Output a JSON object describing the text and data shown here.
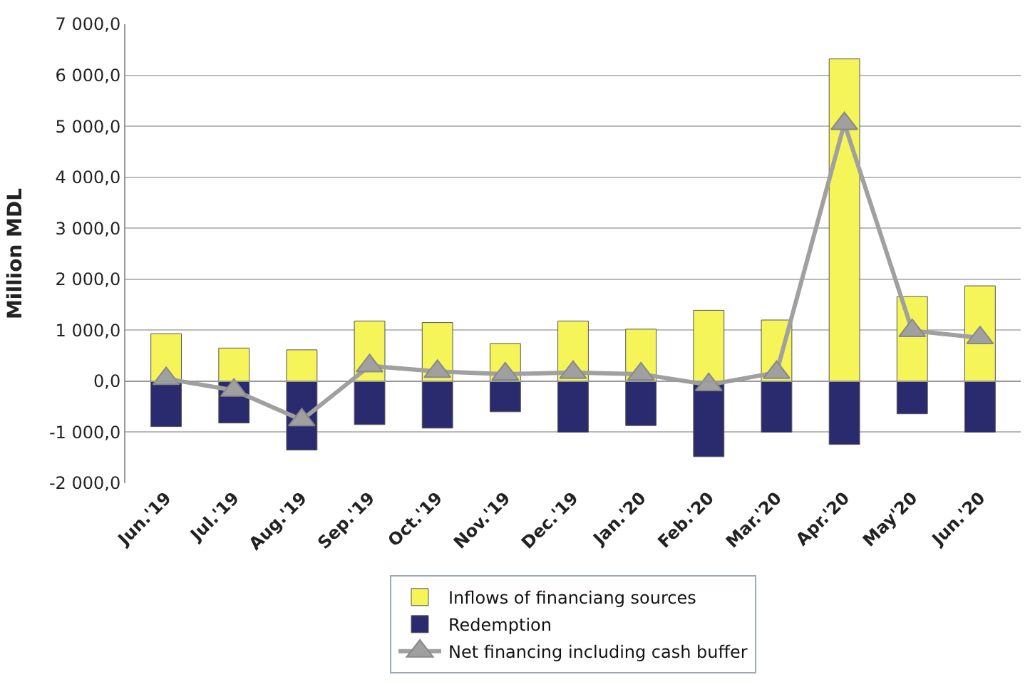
{
  "chart_data": {
    "type": "bar",
    "stacked": true,
    "ylabel": "Million MDL",
    "categories": [
      "Jun.'19",
      "Jul.'19",
      "Aug.'19",
      "Sep.'19",
      "Oct.'19",
      "Nov.'19",
      "Dec.'19",
      "Jan.'20",
      "Feb.'20",
      "Mar.'20",
      "Apr.'20",
      "May'20",
      "Jun.'20"
    ],
    "series": [
      {
        "name": "Inflows of financiang sources",
        "color": "#f5f55a",
        "values": [
          930,
          650,
          615,
          1180,
          1150,
          740,
          1180,
          1020,
          1390,
          1200,
          6320,
          1660,
          1870
        ]
      },
      {
        "name": "Redemption",
        "color": "#2a2a6e",
        "values": [
          -890,
          -820,
          -1350,
          -850,
          -920,
          -600,
          -1000,
          -870,
          -1480,
          -1000,
          -1240,
          -640,
          -1000
        ]
      },
      {
        "name": "Net financing including cash buffer",
        "type": "line",
        "color": "#a0a0a0",
        "marker": "triangle",
        "values": [
          50,
          -180,
          -760,
          300,
          190,
          140,
          170,
          140,
          -70,
          170,
          5050,
          990,
          850
        ]
      }
    ],
    "ylim": [
      -2000,
      7000
    ],
    "yticks": [
      {
        "value": -2000,
        "label": "-2 000,0"
      },
      {
        "value": -1000,
        "label": "-1 000,0"
      },
      {
        "value": 0,
        "label": "0,0"
      },
      {
        "value": 1000,
        "label": "1 000,0"
      },
      {
        "value": 2000,
        "label": "2 000,0"
      },
      {
        "value": 3000,
        "label": "3 000,0"
      },
      {
        "value": 4000,
        "label": "4 000,0"
      },
      {
        "value": 5000,
        "label": "5 000,0"
      },
      {
        "value": 6000,
        "label": "6 000,0"
      },
      {
        "value": 7000,
        "label": "7 000,0"
      }
    ],
    "grid": "y",
    "legend": "bottom"
  }
}
